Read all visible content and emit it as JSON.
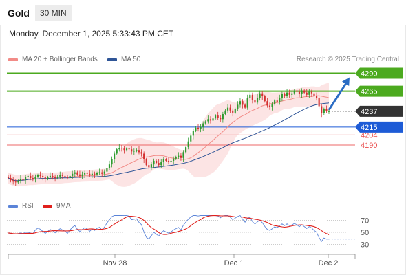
{
  "header": {
    "instrument": "Gold",
    "timeframe": "30 MIN"
  },
  "datetime": "Monday, December 1, 2025 5:33:43 PM CET",
  "credit": "Research © 2025 Trading Central",
  "legend": [
    {
      "label": "MA 20 + Bollinger Bands",
      "color": "#f28b87"
    },
    {
      "label": "MA 50",
      "color": "#2f5597"
    }
  ],
  "rsi_legend": [
    {
      "label": "RSI",
      "color": "#5b84d8"
    },
    {
      "label": "9MA",
      "color": "#e0201c"
    }
  ],
  "colors": {
    "resistance": "#4caa1f",
    "support": "#1d5bd6",
    "minor": "#e94c4c",
    "current": "#333333",
    "up_candle": "#2e9a2e",
    "down_candle": "#d43030",
    "arrow": "#2a6cc4"
  },
  "chart_data": [
    {
      "type": "candlestick",
      "title": "",
      "ylim": [
        4122,
        4300
      ],
      "x_ticks": [
        "Nov 28",
        "Dec 1",
        "Dec 2"
      ],
      "levels": [
        {
          "value": 4290,
          "label": "4290",
          "kind": "resistance",
          "style": "tag"
        },
        {
          "value": 4265,
          "label": "4265",
          "kind": "resistance",
          "style": "tag"
        },
        {
          "value": 4237,
          "label": "4237",
          "kind": "current",
          "style": "tag"
        },
        {
          "value": 4215,
          "label": "4215",
          "kind": "support",
          "style": "tag"
        },
        {
          "value": 4204,
          "label": "4204",
          "kind": "minor",
          "style": "text"
        },
        {
          "value": 4190,
          "label": "4190",
          "kind": "minor",
          "style": "text"
        }
      ],
      "close_series": [
        4144,
        4141,
        4139,
        4138,
        4140,
        4143,
        4141,
        4145,
        4147,
        4144,
        4143,
        4146,
        4148,
        4147,
        4145,
        4143,
        4145,
        4147,
        4146,
        4144,
        4146,
        4148,
        4147,
        4146,
        4144,
        4147,
        4150,
        4152,
        4149,
        4147,
        4149,
        4151,
        4150,
        4148,
        4150,
        4149,
        4151,
        4152,
        4150,
        4153,
        4158,
        4163,
        4170,
        4178,
        4184,
        4186,
        4185,
        4183,
        4185,
        4184,
        4181,
        4182,
        4183,
        4180,
        4178,
        4170,
        4162,
        4159,
        4163,
        4168,
        4165,
        4162,
        4166,
        4170,
        4168,
        4166,
        4168,
        4171,
        4173,
        4175,
        4172,
        4180,
        4187,
        4195,
        4203,
        4210,
        4214,
        4212,
        4215,
        4220,
        4223,
        4226,
        4224,
        4227,
        4231,
        4228,
        4226,
        4233,
        4238,
        4242,
        4238,
        4235,
        4240,
        4246,
        4251,
        4246,
        4242,
        4255,
        4260,
        4253,
        4249,
        4256,
        4262,
        4258,
        4251,
        4245,
        4243,
        4247,
        4252,
        4250,
        4256,
        4261,
        4258,
        4263,
        4260,
        4262,
        4266,
        4264,
        4261,
        4266,
        4263,
        4260,
        4264,
        4262,
        4258,
        4255,
        4244,
        4234,
        4240,
        4237,
        4237
      ],
      "pre_rsi_series": [
        49,
        48,
        47,
        47,
        48,
        49,
        48,
        50,
        50,
        49
      ]
    },
    {
      "type": "line",
      "title": "",
      "ylabel": "",
      "ylim": [
        18,
        82
      ],
      "y_ticks": [
        70,
        50,
        30
      ],
      "series": [
        {
          "name": "RSI",
          "source": "rsi_14",
          "color": "#5b84d8"
        },
        {
          "name": "9MA",
          "source": "rsi_ma_9",
          "color": "#e0201c"
        }
      ]
    }
  ]
}
